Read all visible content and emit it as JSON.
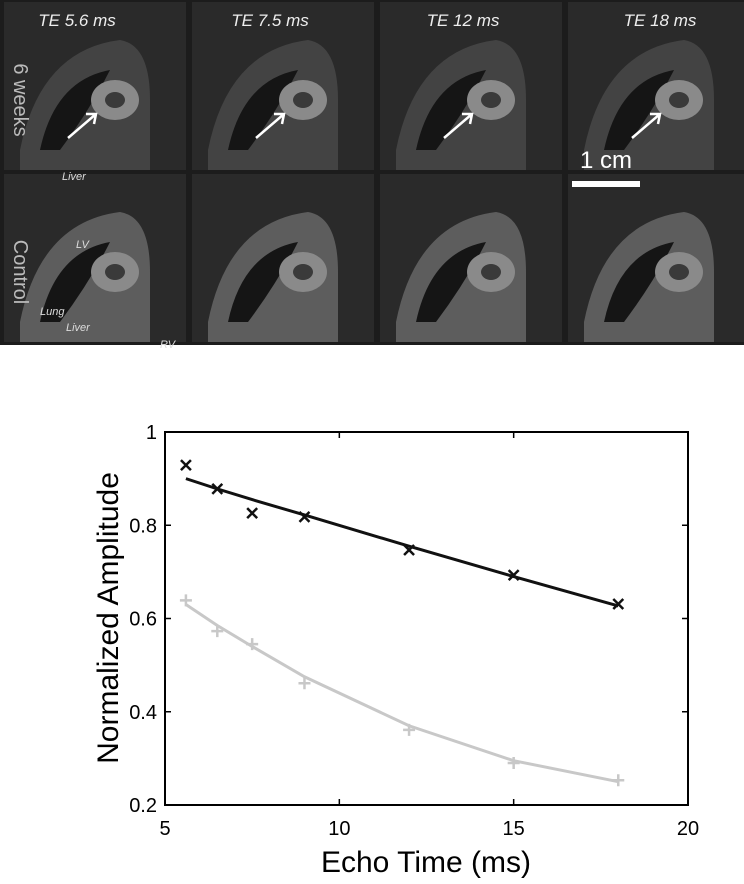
{
  "image_panel": {
    "echo_times": [
      "TE 5.6 ms",
      "TE 7.5 ms",
      "TE 12 ms",
      "TE 18 ms"
    ],
    "row_labels": [
      "6 weeks",
      "Control"
    ],
    "scale_bar": "1 cm",
    "annotations": [
      "Liver",
      "LV",
      "Lung",
      "Liver",
      "RV"
    ]
  },
  "chart_data": {
    "type": "scatter",
    "x_label": "Echo Time (ms)",
    "y_label": "Normalized Amplitude",
    "x": [
      5.6,
      6.5,
      7.5,
      9,
      12,
      15,
      18
    ],
    "series": [
      {
        "color": "#111111",
        "mode": "markers",
        "marker": "x",
        "values": [
          0.929,
          0.878,
          0.826,
          0.818,
          0.747,
          0.693,
          0.631
        ]
      },
      {
        "color": "#111111",
        "mode": "line",
        "values": [
          0.9,
          0.878,
          0.855,
          0.822,
          0.755,
          0.69,
          0.627
        ]
      },
      {
        "color": "#c8c8c8",
        "mode": "markers",
        "marker": "+",
        "values": [
          0.639,
          0.573,
          0.545,
          0.461,
          0.361,
          0.29,
          0.253
        ]
      },
      {
        "color": "#c8c8c8",
        "mode": "line",
        "values": [
          0.63,
          0.585,
          0.54,
          0.475,
          0.37,
          0.295,
          0.25
        ]
      }
    ],
    "xlim": [
      5,
      20
    ],
    "xticks": [
      5,
      10,
      15,
      20
    ],
    "ylim": [
      0.2,
      1
    ],
    "yticks": [
      0.2,
      0.4,
      0.6,
      0.8,
      1
    ]
  }
}
